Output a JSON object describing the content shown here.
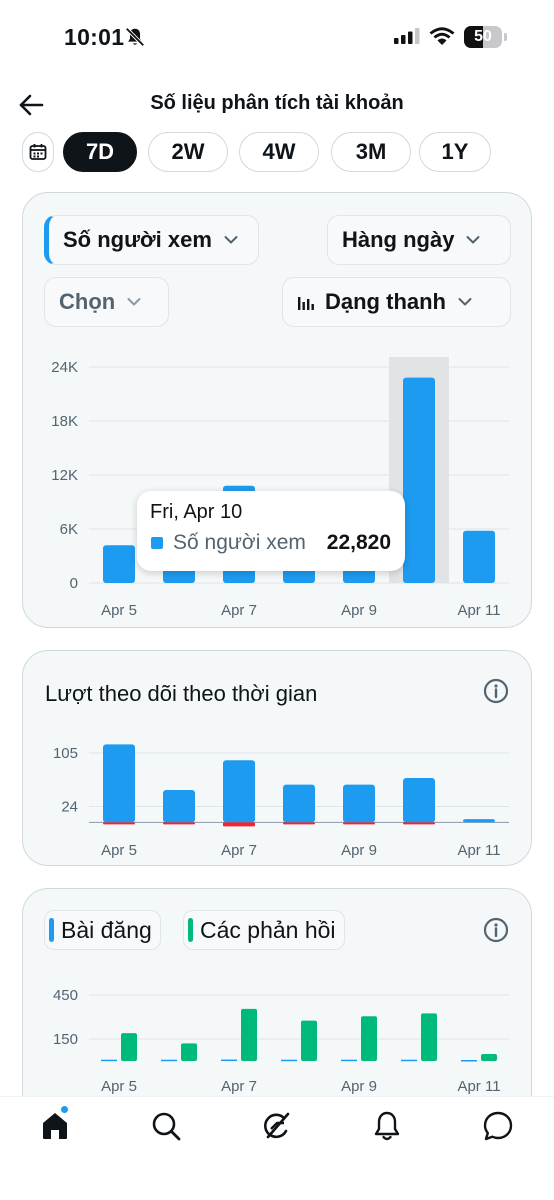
{
  "status_bar": {
    "time": "10:01",
    "battery": "50",
    "battery_level": 0.5
  },
  "header": {
    "title": "Số liệu phân tích tài khoản"
  },
  "range_tabs": [
    {
      "label": "7D",
      "active": true
    },
    {
      "label": "2W",
      "active": false
    },
    {
      "label": "4W",
      "active": false
    },
    {
      "label": "3M",
      "active": false
    },
    {
      "label": "1Y",
      "active": false
    }
  ],
  "views_card": {
    "metric_selector": "Số người xem",
    "interval_selector": "Hàng ngày",
    "compare_selector": "Chọn",
    "chart_type_selector": "Dạng thanh",
    "tooltip": {
      "date": "Fri, Apr 10",
      "label": "Số người xem",
      "value": "22,820"
    }
  },
  "followers_card": {
    "title": "Lượt theo dõi theo thời gian"
  },
  "posts_card": {
    "legend_posts": "Bài đăng",
    "legend_replies": "Các phản hồi"
  },
  "colors": {
    "accent_blue": "#1d9bf0",
    "green": "#00ba7c",
    "red": "#f4212e",
    "highlight": "#e1e3e5"
  },
  "icons": [
    "bell-slash-icon",
    "signal-icon",
    "wifi-icon",
    "battery-icon",
    "back-arrow-icon",
    "calendar-icon",
    "chevron-down-icon",
    "bar-chart-icon",
    "info-icon",
    "home-icon",
    "search-icon",
    "grok-icon",
    "bell-icon",
    "messages-icon"
  ],
  "chart_data": [
    {
      "type": "bar",
      "categories": [
        "Apr 5",
        "Apr 6",
        "Apr 7",
        "Apr 8",
        "Apr 9",
        "Apr 10",
        "Apr 11"
      ],
      "x_tick_labels": [
        "Apr 5",
        "Apr 7",
        "Apr 9",
        "Apr 11"
      ],
      "series": [
        {
          "name": "Số người xem",
          "values": [
            4200,
            4000,
            10800,
            10200,
            4000,
            22820,
            5800
          ]
        }
      ],
      "ylim": [
        0,
        24000
      ],
      "yticks": [
        0,
        6000,
        12000,
        18000,
        24000
      ],
      "ytick_labels": [
        "0",
        "6K",
        "12K",
        "18K",
        "24K"
      ],
      "highlight_category": "Apr 10",
      "grid": true
    },
    {
      "type": "bar",
      "categories": [
        "Apr 5",
        "Apr 6",
        "Apr 7",
        "Apr 8",
        "Apr 9",
        "Apr 10",
        "Apr 11"
      ],
      "x_tick_labels": [
        "Apr 5",
        "Apr 7",
        "Apr 9",
        "Apr 11"
      ],
      "series": [
        {
          "name": "gained",
          "values": [
            118,
            49,
            94,
            57,
            57,
            67,
            5
          ]
        },
        {
          "name": "lost",
          "values": [
            -2,
            -2,
            -6,
            -3,
            -1,
            -1,
            0
          ]
        }
      ],
      "ylim": [
        -10,
        120
      ],
      "yticks": [
        24,
        105
      ],
      "ytick_labels": [
        "24",
        "105"
      ],
      "grid": true
    },
    {
      "type": "bar",
      "categories": [
        "Apr 5",
        "Apr 6",
        "Apr 7",
        "Apr 8",
        "Apr 9",
        "Apr 10",
        "Apr 11"
      ],
      "x_tick_labels": [
        "Apr 5",
        "Apr 7",
        "Apr 9",
        "Apr 11"
      ],
      "series": [
        {
          "name": "Bài đăng",
          "values": [
            2,
            2,
            3,
            2,
            2,
            2,
            0
          ]
        },
        {
          "name": "Các phản hồi",
          "values": [
            190,
            120,
            355,
            275,
            305,
            325,
            48
          ]
        }
      ],
      "ylim": [
        0,
        450
      ],
      "yticks": [
        150,
        450
      ],
      "ytick_labels": [
        "150",
        "450"
      ],
      "grid": true
    }
  ]
}
